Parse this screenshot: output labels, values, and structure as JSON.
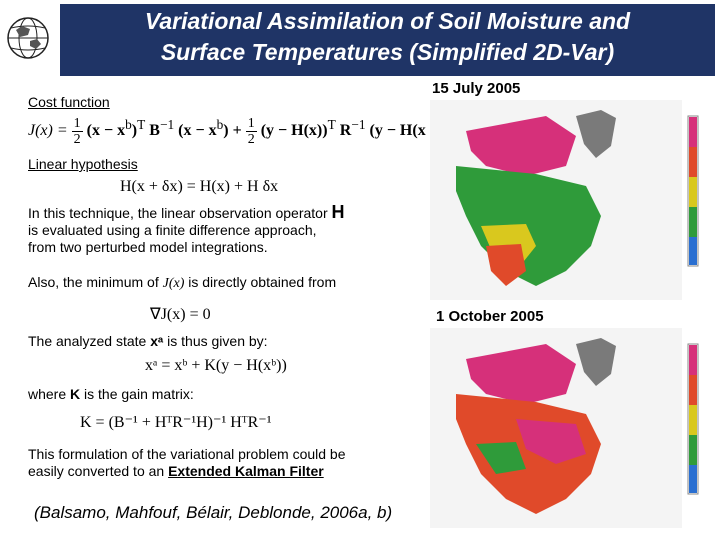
{
  "header": {
    "title_line1": "Variational Assimilation of Soil Moisture and",
    "title_line2": "Surface Temperatures (Simplified 2D-Var)"
  },
  "logo": {
    "icon": "globe-logo-icon"
  },
  "left": {
    "cost_label": "Cost function",
    "cost_eq": {
      "lhs": "J(x) =",
      "half": "1",
      "two": "2",
      "p1": "(x − x",
      "sup_b": "b",
      "p2": ")",
      "sup_T": "T",
      "B": "B",
      "sup_m1": "−1",
      "p3": "(x − x",
      "p4": ") +",
      "p5": "(y − H(x))",
      "R": "R",
      "p6": "(y − H(x))"
    },
    "linear_label": "Linear hypothesis",
    "linear_eq": "H(x + δx) = H(x) + H δx",
    "technique_text_1": "In this technique, the linear observation operator",
    "technique_H": "H",
    "technique_text_2": "is evaluated using a finite difference approach,",
    "technique_text_3": "from two perturbed model integrations.",
    "minimum_text": "Also, the minimum of",
    "minimum_J": "J(x)",
    "minimum_text_2": "is directly obtained from",
    "grad_eq": "∇J(x) = 0",
    "analyzed_text_1": "The analyzed state",
    "analyzed_xa": "xᵃ",
    "analyzed_text_2": "is thus given by:",
    "analysis_eq": "xᵃ = xᵇ + K(y − H(xᵇ))",
    "where_text_1": "where",
    "where_K": "K",
    "where_text_2": "is the gain matrix:",
    "gain_eq": "K = (B⁻¹ + HᵀR⁻¹H)⁻¹ HᵀR⁻¹",
    "formulation_1": "This formulation of the variational problem could be",
    "formulation_2": "easily converted to an",
    "ekf": "Extended Kalman Filter",
    "citation": "(Balsamo, Mahfouf, Bélair, Deblonde, 2006a, b)"
  },
  "right": {
    "date1": "15 July 2005",
    "date2": "1 October 2005"
  },
  "colors": {
    "header_bg": "#1f3466",
    "map_greenland": "#7a7a7a",
    "map_north": "#d6307a",
    "map_main": "#2f9b3a",
    "map_south": "#e04a2a",
    "map_yellow": "#d9c81e"
  }
}
